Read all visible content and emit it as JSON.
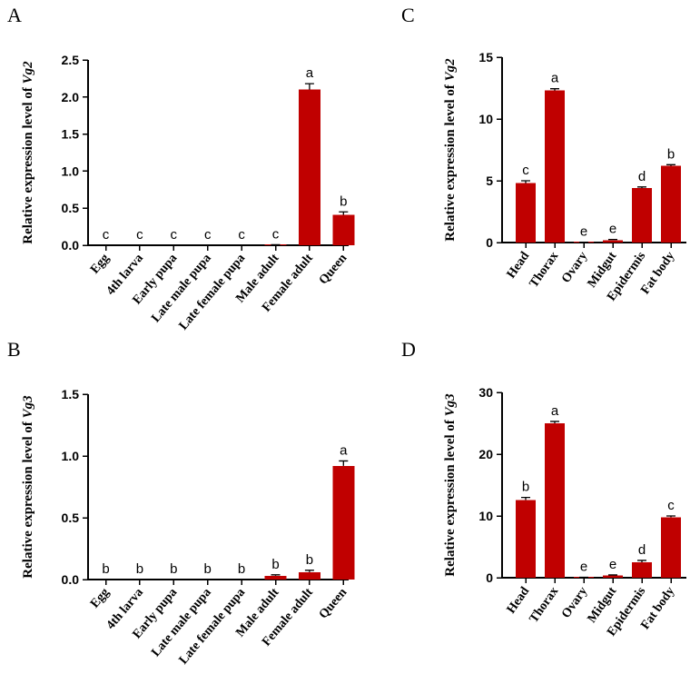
{
  "colors": {
    "bar": "#c00000",
    "axis": "#000000"
  },
  "chart_data": [
    {
      "id": "A",
      "panel_label": "A",
      "type": "bar",
      "ylabel_text": "Relative expression level  of ",
      "ylabel_gene": "Vg2",
      "ylim": [
        0,
        2.5
      ],
      "yticks": [
        0,
        0.5,
        1.0,
        1.5,
        2.0,
        2.5
      ],
      "ytick_labels": [
        "0.0",
        "0.5",
        "1.0",
        "1.5",
        "2.0",
        "2.5"
      ],
      "categories": [
        "Egg",
        "4th larva",
        "Early pupa",
        "Late male pupa",
        "Late female pupa",
        "Male adult",
        "Female adult",
        "Queen"
      ],
      "values": [
        0,
        0,
        0,
        0,
        0,
        0.005,
        2.1,
        0.41
      ],
      "errors": [
        0,
        0,
        0,
        0,
        0,
        0.002,
        0.08,
        0.04
      ],
      "letters": [
        "c",
        "c",
        "c",
        "c",
        "c",
        "c",
        "a",
        "b"
      ]
    },
    {
      "id": "B",
      "panel_label": "B",
      "type": "bar",
      "ylabel_text": "Relative expression level of ",
      "ylabel_gene": "Vg3",
      "ylim": [
        0,
        1.5
      ],
      "yticks": [
        0,
        0.5,
        1.0,
        1.5
      ],
      "ytick_labels": [
        "0.0",
        "0.5",
        "1.0",
        "1.5"
      ],
      "categories": [
        "Egg",
        "4th larva",
        "Early pupa",
        "Late male pupa",
        "Late female pupa",
        "Male adult",
        "Female adult",
        "Queen"
      ],
      "values": [
        0,
        0,
        0,
        0,
        0,
        0.03,
        0.06,
        0.92
      ],
      "errors": [
        0,
        0,
        0,
        0,
        0,
        0.008,
        0.015,
        0.04
      ],
      "letters": [
        "b",
        "b",
        "b",
        "b",
        "b",
        "b",
        "b",
        "a"
      ]
    },
    {
      "id": "C",
      "panel_label": "C",
      "type": "bar",
      "ylabel_text": "Relative expression level of ",
      "ylabel_gene": "Vg2",
      "ylim": [
        0,
        15
      ],
      "yticks": [
        0,
        5,
        10,
        15
      ],
      "ytick_labels": [
        "0",
        "5",
        "10",
        "15"
      ],
      "categories": [
        "Head",
        "Thorax",
        "Ovary",
        "Midgut",
        "Epidermis",
        "Fat body"
      ],
      "values": [
        4.8,
        12.3,
        0.02,
        0.2,
        4.4,
        6.2
      ],
      "errors": [
        0.2,
        0.15,
        0.01,
        0.05,
        0.1,
        0.1
      ],
      "letters": [
        "c",
        "a",
        "e",
        "e",
        "d",
        "b"
      ]
    },
    {
      "id": "D",
      "panel_label": "D",
      "type": "bar",
      "ylabel_text": "Relative expression level of ",
      "ylabel_gene": "Vg3",
      "ylim": [
        0,
        30
      ],
      "yticks": [
        0,
        10,
        20,
        30
      ],
      "ytick_labels": [
        "0",
        "10",
        "20",
        "30"
      ],
      "categories": [
        "Head",
        "Thorax",
        "Ovary",
        "Midgut",
        "Epidermis",
        "Fat body"
      ],
      "values": [
        12.6,
        25.0,
        0.05,
        0.4,
        2.5,
        9.8
      ],
      "errors": [
        0.4,
        0.3,
        0.02,
        0.05,
        0.3,
        0.2
      ],
      "letters": [
        "b",
        "a",
        "e",
        "e",
        "d",
        "c"
      ]
    }
  ]
}
